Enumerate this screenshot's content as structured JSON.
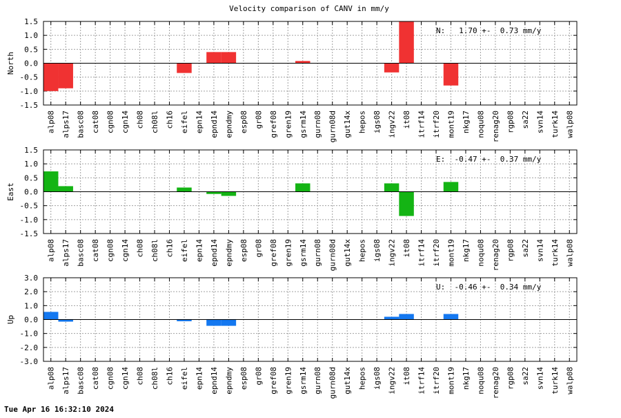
{
  "title": "Velocity comparison of CANV in mm/y",
  "footer_timestamp": "Tue Apr 16 16:32:10 2024",
  "stations": [
    "alp08",
    "alps17",
    "basc08",
    "cat08",
    "cgn08",
    "cgn14",
    "ch08",
    "ch08l",
    "ch16",
    "eifel",
    "epn14",
    "epnd14",
    "epndmy",
    "esp08",
    "gr08",
    "gref08",
    "gren19",
    "gsrm14",
    "gurn08",
    "gurn08d",
    "gut14x",
    "hepos",
    "igs08",
    "ingv22",
    "it08",
    "itrf14",
    "itrf20",
    "mont19",
    "nkg17",
    "noqu08",
    "renag20",
    "rgp08",
    "sa22",
    "svn14",
    "turk14",
    "walp08"
  ],
  "chart_data": [
    {
      "type": "bar",
      "ylabel": "North",
      "color": "#f03232",
      "ylim": [
        -1.5,
        1.5
      ],
      "yticks": [
        1.5,
        1.0,
        0.5,
        0.0,
        -0.5,
        -1.0,
        -1.5
      ],
      "ytick_labels": [
        "1.5",
        "1.0",
        "0.5",
        "0.0",
        "-0.5",
        "-1.0",
        "-1.5"
      ],
      "annotation": "N:   1.70 +-  0.73 mm/y",
      "grid": true,
      "values": [
        -1.0,
        -0.9,
        null,
        null,
        null,
        null,
        null,
        null,
        null,
        -0.35,
        null,
        0.4,
        0.4,
        null,
        null,
        null,
        null,
        0.08,
        null,
        null,
        null,
        null,
        null,
        -0.33,
        1.5,
        null,
        null,
        -0.8,
        null,
        null,
        null,
        null,
        null,
        null,
        null,
        null
      ]
    },
    {
      "type": "bar",
      "ylabel": "East",
      "color": "#14b414",
      "ylim": [
        -1.5,
        1.5
      ],
      "yticks": [
        1.5,
        1.0,
        0.5,
        0.0,
        -0.5,
        -1.0,
        -1.5
      ],
      "ytick_labels": [
        "1.5",
        "1.0",
        "0.5",
        "0.0",
        "-0.5",
        "-1.0",
        "-1.5"
      ],
      "annotation": "E:  -0.47 +-  0.37 mm/y",
      "grid": true,
      "values": [
        0.73,
        0.2,
        null,
        null,
        null,
        null,
        null,
        null,
        null,
        0.15,
        null,
        -0.08,
        -0.15,
        null,
        null,
        null,
        null,
        0.3,
        null,
        null,
        null,
        null,
        null,
        0.3,
        -0.87,
        null,
        null,
        0.35,
        null,
        null,
        null,
        null,
        null,
        null,
        null,
        null
      ]
    },
    {
      "type": "bar",
      "ylabel": "Up",
      "color": "#1478f0",
      "ylim": [
        -3.0,
        3.0
      ],
      "yticks": [
        3.0,
        2.0,
        1.0,
        0.0,
        -1.0,
        -2.0,
        -3.0
      ],
      "ytick_labels": [
        "3.0",
        "2.0",
        "1.0",
        "0.0",
        "-1.0",
        "-2.0",
        "-3.0"
      ],
      "annotation": "U:  -0.46 +-  0.34 mm/y",
      "grid": true,
      "values": [
        0.55,
        -0.15,
        null,
        null,
        null,
        null,
        null,
        null,
        null,
        -0.12,
        null,
        -0.45,
        -0.45,
        null,
        null,
        null,
        null,
        null,
        null,
        null,
        null,
        null,
        null,
        0.2,
        0.4,
        null,
        null,
        0.4,
        null,
        null,
        null,
        null,
        null,
        null,
        null,
        null
      ]
    }
  ]
}
